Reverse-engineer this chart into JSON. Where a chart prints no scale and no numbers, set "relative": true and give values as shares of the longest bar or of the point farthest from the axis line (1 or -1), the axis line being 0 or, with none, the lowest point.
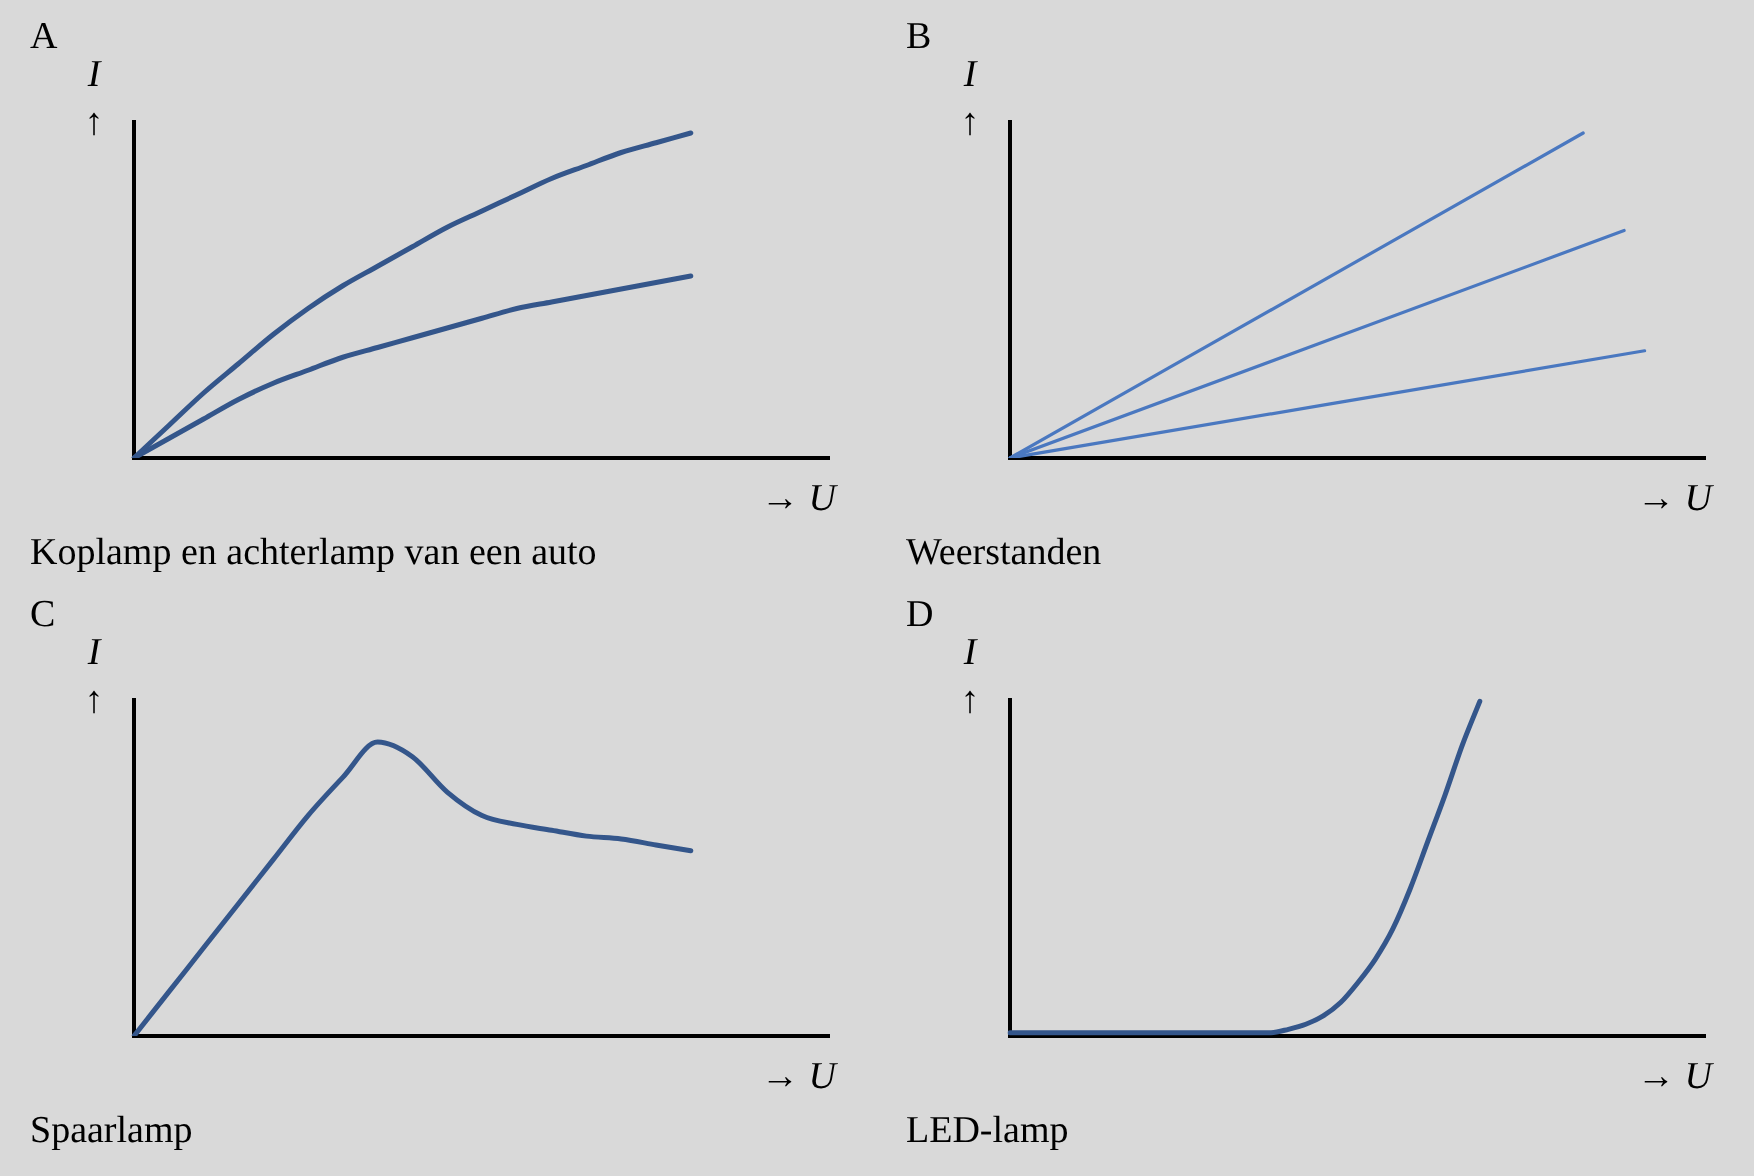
{
  "chart_data": [
    {
      "type": "line",
      "title": "A",
      "ylabel": "I ↑",
      "xlabel": "→ U",
      "annotations": [
        "Koplamp en achterlamp van een auto"
      ],
      "relative": true,
      "legend": false,
      "marker": "none",
      "categories": [
        null,
        null,
        null,
        null,
        null,
        null,
        null,
        null,
        null,
        null,
        null,
        null,
        null,
        null,
        null,
        null,
        null,
        null,
        null,
        null,
        null
      ],
      "series": [
        {
          "color": "#34568b",
          "values": [
            0,
            0.1,
            0.2,
            0.29,
            0.38,
            0.46,
            0.53,
            0.59,
            0.65,
            0.71,
            0.76,
            0.81,
            0.86,
            0.9,
            0.94,
            0.97,
            1,
            null,
            null,
            null,
            null
          ]
        },
        {
          "color": "#34568b",
          "values": [
            0,
            0.06,
            0.12,
            0.18,
            0.23,
            0.27,
            0.31,
            0.34,
            0.37,
            0.4,
            0.43,
            0.46,
            0.48,
            0.5,
            0.52,
            0.54,
            0.56,
            null,
            null,
            null,
            null
          ]
        }
      ]
    },
    {
      "type": "line",
      "title": "B",
      "ylabel": "I ↑",
      "xlabel": "→ U",
      "annotations": [
        "Weerstanden"
      ],
      "relative": true,
      "legend": false,
      "marker": "none",
      "categories": [
        null,
        null,
        null,
        null,
        null,
        null,
        null,
        null,
        null,
        null,
        null,
        null,
        null,
        null,
        null,
        null,
        null,
        null,
        null,
        null,
        null,
        null,
        null,
        null,
        null,
        null,
        null,
        null,
        null,
        null,
        null,
        null,
        null,
        null,
        null
      ],
      "series": [
        {
          "color": "#4a78c0",
          "values": [
            0,
            null,
            null,
            null,
            null,
            null,
            null,
            null,
            null,
            null,
            null,
            null,
            null,
            null,
            null,
            null,
            null,
            null,
            null,
            null,
            null,
            null,
            null,
            null,
            null,
            null,
            null,
            null,
            1,
            null,
            null,
            null,
            null,
            null,
            null
          ]
        },
        {
          "color": "#4a78c0",
          "values": [
            0,
            null,
            null,
            null,
            null,
            null,
            null,
            null,
            null,
            null,
            null,
            null,
            null,
            null,
            null,
            null,
            null,
            null,
            null,
            null,
            null,
            null,
            null,
            null,
            null,
            null,
            null,
            null,
            null,
            null,
            0.7,
            null,
            null,
            null,
            null
          ]
        },
        {
          "color": "#4a78c0",
          "values": [
            0,
            null,
            null,
            null,
            null,
            null,
            null,
            null,
            null,
            null,
            null,
            null,
            null,
            null,
            null,
            null,
            null,
            null,
            null,
            null,
            null,
            null,
            null,
            null,
            null,
            null,
            null,
            null,
            null,
            null,
            null,
            0.33,
            null,
            null,
            null
          ]
        }
      ]
    },
    {
      "type": "line",
      "title": "C",
      "ylabel": "I ↑",
      "xlabel": "→ U",
      "annotations": [
        "Spaarlamp"
      ],
      "relative": true,
      "legend": false,
      "marker": "none",
      "categories": [
        null,
        null,
        null,
        null,
        null,
        null,
        null,
        null,
        null,
        null,
        null,
        null,
        null,
        null,
        null,
        null,
        null,
        null,
        null,
        null,
        null
      ],
      "series": [
        {
          "color": "#34568b",
          "values": [
            0,
            0.15,
            0.3,
            0.45,
            0.6,
            0.75,
            0.88,
            1,
            0.95,
            0.83,
            0.75,
            0.72,
            0.7,
            0.68,
            0.67,
            0.65,
            0.63,
            null,
            null,
            null,
            null
          ]
        }
      ]
    },
    {
      "type": "line",
      "title": "D",
      "ylabel": "I ↑",
      "xlabel": "→ U",
      "annotations": [
        "LED-lamp"
      ],
      "relative": true,
      "legend": false,
      "marker": "none",
      "categories": [
        null,
        null,
        null,
        null,
        null,
        null,
        null,
        null,
        null,
        null,
        null,
        null,
        null,
        null,
        null,
        null,
        null,
        null,
        null,
        null,
        null,
        null,
        null,
        null,
        null,
        null,
        null,
        null,
        null,
        null,
        null,
        null,
        null,
        null,
        null,
        null,
        null,
        null,
        null,
        null,
        null
      ],
      "series": [
        {
          "color": "#34568b",
          "values": [
            0.01,
            0.01,
            0.01,
            0.01,
            0.01,
            0.01,
            0.01,
            0.01,
            0.01,
            0.01,
            0.01,
            0.01,
            0.01,
            0.01,
            0.01,
            0.01,
            0.02,
            0.035,
            0.06,
            0.1,
            0.16,
            0.23,
            0.32,
            0.44,
            0.58,
            0.72,
            0.87,
            1,
            null,
            null,
            null,
            null,
            null,
            null,
            null,
            null,
            null,
            null,
            null,
            null,
            null
          ]
        }
      ]
    }
  ]
}
